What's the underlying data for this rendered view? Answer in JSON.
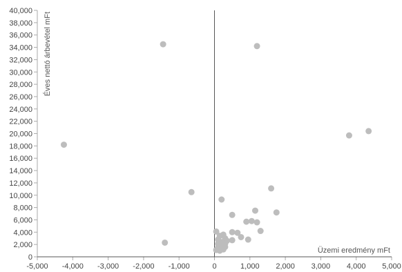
{
  "chart_data": {
    "type": "scatter",
    "title": "",
    "xlabel": "Üzemi eredmény mFt",
    "ylabel": "Éves nettó árbevétel mFt",
    "xlim": [
      -5000,
      5000
    ],
    "ylim": [
      0,
      40000
    ],
    "x_ticks": [
      "-5,000",
      "-4,000",
      "-3,000",
      "-2,000",
      "-1,000",
      "0",
      "1,000",
      "2,000",
      "3,000",
      "4,000",
      "5,000"
    ],
    "y_ticks": [
      "0",
      "2,000",
      "4,000",
      "6,000",
      "8,000",
      "10,000",
      "12,000",
      "14,000",
      "16,000",
      "18,000",
      "20,000",
      "22,000",
      "24,000",
      "26,000",
      "28,000",
      "30,000",
      "32,000",
      "34,000",
      "36,000",
      "38,000",
      "40,000"
    ],
    "grid": false,
    "legend": "none",
    "point_color": "#bdbdbd",
    "axis_color": "#555555",
    "points": [
      {
        "x": -4250,
        "y": 18200
      },
      {
        "x": -1450,
        "y": 34500
      },
      {
        "x": -1400,
        "y": 2300
      },
      {
        "x": -650,
        "y": 10500
      },
      {
        "x": 1200,
        "y": 34200
      },
      {
        "x": 3800,
        "y": 19700
      },
      {
        "x": 4350,
        "y": 20400
      },
      {
        "x": 1600,
        "y": 11100
      },
      {
        "x": 200,
        "y": 9300
      },
      {
        "x": 1150,
        "y": 7500
      },
      {
        "x": 1750,
        "y": 7200
      },
      {
        "x": 500,
        "y": 6800
      },
      {
        "x": 900,
        "y": 5700
      },
      {
        "x": 1050,
        "y": 5800
      },
      {
        "x": 1200,
        "y": 5600
      },
      {
        "x": 1300,
        "y": 4200
      },
      {
        "x": 650,
        "y": 3900
      },
      {
        "x": 500,
        "y": 4000
      },
      {
        "x": 750,
        "y": 3200
      },
      {
        "x": 950,
        "y": 2800
      },
      {
        "x": 500,
        "y": 2700
      },
      {
        "x": 50,
        "y": 4100
      },
      {
        "x": 150,
        "y": 3400
      },
      {
        "x": 250,
        "y": 3600
      },
      {
        "x": 300,
        "y": 3000
      },
      {
        "x": 350,
        "y": 2600
      },
      {
        "x": 100,
        "y": 2800
      },
      {
        "x": 200,
        "y": 2400
      },
      {
        "x": 300,
        "y": 2100
      },
      {
        "x": 150,
        "y": 1900
      },
      {
        "x": 250,
        "y": 1700
      },
      {
        "x": 100,
        "y": 1500
      },
      {
        "x": 200,
        "y": 1300
      },
      {
        "x": 300,
        "y": 1600
      },
      {
        "x": 50,
        "y": 1100
      },
      {
        "x": 150,
        "y": 1000
      },
      {
        "x": 250,
        "y": 1200
      },
      {
        "x": 100,
        "y": 2100
      }
    ]
  }
}
